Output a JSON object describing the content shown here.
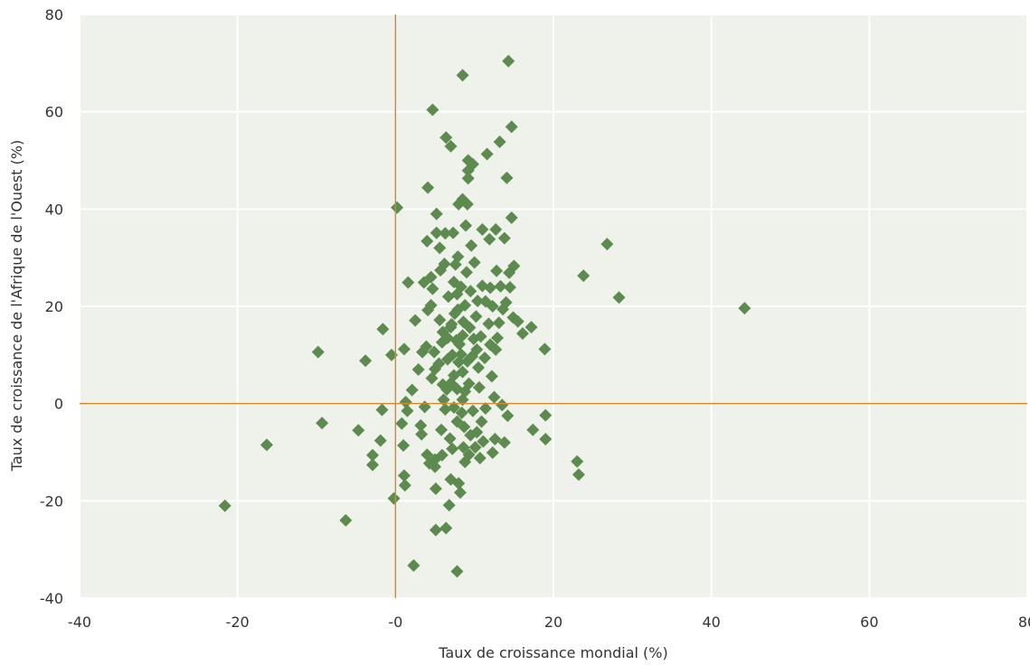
{
  "colors": {
    "plot_background": "#eef2eb",
    "grid": "#ffffff",
    "zero_lines": "#d38a2c",
    "marker": "#5d8a4e",
    "text": "#333333"
  },
  "chart_data": {
    "type": "scatter",
    "title": "",
    "xlabel": "Taux de croissance mondial  (%)",
    "ylabel": "Taux de croissance de l'Afrique de l'Ouest (%)",
    "xlim": [
      -40,
      80
    ],
    "ylim": [
      -40,
      80
    ],
    "x_ticks": [
      -40,
      -20,
      0,
      20,
      40,
      60,
      80
    ],
    "y_ticks": [
      -40,
      -20,
      0,
      20,
      40,
      60,
      80
    ],
    "x_tick_labels": [
      "-40",
      "-20",
      "-0",
      "20",
      "40",
      "60",
      "80"
    ],
    "y_tick_labels": [
      "-40",
      "-20",
      "0",
      "20",
      "40",
      "60",
      "80"
    ],
    "grid": true,
    "marker": "diamond",
    "reference_lines": {
      "x": 0,
      "y": 0
    },
    "legend": "none",
    "points": [
      [
        -21.6,
        -21
      ],
      [
        -16.3,
        -8.5
      ],
      [
        -9.8,
        10.6
      ],
      [
        -9.3,
        -4
      ],
      [
        -6.3,
        -24
      ],
      [
        -4.7,
        -5.5
      ],
      [
        -3.8,
        8.8
      ],
      [
        -2.9,
        -10.6
      ],
      [
        -2.9,
        -12.6
      ],
      [
        -1.9,
        -7.6
      ],
      [
        -1.7,
        -1.3
      ],
      [
        -1.6,
        15.3
      ],
      [
        -0.5,
        10
      ],
      [
        -0.2,
        -19.5
      ],
      [
        0.2,
        40.3
      ],
      [
        0.8,
        -4.1
      ],
      [
        1,
        -8.6
      ],
      [
        1.1,
        -14.8
      ],
      [
        1.2,
        -16.8
      ],
      [
        1.1,
        11.2
      ],
      [
        1.3,
        0.3
      ],
      [
        1.5,
        -1.5
      ],
      [
        1.6,
        24.9
      ],
      [
        2.1,
        2.8
      ],
      [
        2.3,
        -33.3
      ],
      [
        2.5,
        17.1
      ],
      [
        2.9,
        7
      ],
      [
        3.2,
        -4.5
      ],
      [
        3.3,
        -6.3
      ],
      [
        3.4,
        10.6
      ],
      [
        3.6,
        24.9
      ],
      [
        3.7,
        -0.7
      ],
      [
        3.9,
        11.7
      ],
      [
        4,
        33.4
      ],
      [
        4,
        -10.5
      ],
      [
        4.1,
        19.2
      ],
      [
        4.1,
        44.4
      ],
      [
        4.3,
        -12.3
      ],
      [
        4.5,
        20.2
      ],
      [
        4.5,
        26
      ],
      [
        4.6,
        5.2
      ],
      [
        4.7,
        23.6
      ],
      [
        4.7,
        60.4
      ],
      [
        4.9,
        10.6
      ],
      [
        5,
        -11.5
      ],
      [
        5,
        7.1
      ],
      [
        5,
        -13
      ],
      [
        5.1,
        -17.5
      ],
      [
        5.1,
        -26
      ],
      [
        5.2,
        35.1
      ],
      [
        5.2,
        39
      ],
      [
        5.5,
        8.2
      ],
      [
        5.6,
        32
      ],
      [
        5.6,
        17.2
      ],
      [
        5.7,
        27.4
      ],
      [
        5.8,
        -5.4
      ],
      [
        5.9,
        12.6
      ],
      [
        5.9,
        -10.6
      ],
      [
        6,
        14.7
      ],
      [
        6,
        3.9
      ],
      [
        6.1,
        0.8
      ],
      [
        6.2,
        28.7
      ],
      [
        6.3,
        -1.2
      ],
      [
        6.3,
        35
      ],
      [
        6.4,
        54.7
      ],
      [
        6.4,
        -25.6
      ],
      [
        6.5,
        2.9
      ],
      [
        6.6,
        13.5
      ],
      [
        6.6,
        9.1
      ],
      [
        6.7,
        22
      ],
      [
        6.8,
        -20.9
      ],
      [
        6.9,
        -7.2
      ],
      [
        7,
        15.7
      ],
      [
        7,
        52.9
      ],
      [
        7,
        4.2
      ],
      [
        7,
        -15.6
      ],
      [
        7.1,
        16.3
      ],
      [
        7.2,
        10
      ],
      [
        7.2,
        -9.3
      ],
      [
        7.3,
        35.1
      ],
      [
        7.4,
        25
      ],
      [
        7.4,
        -0.8
      ],
      [
        7.4,
        5.8
      ],
      [
        7.5,
        18.5
      ],
      [
        7.6,
        28.6
      ],
      [
        7.7,
        13
      ],
      [
        7.8,
        3
      ],
      [
        7.8,
        -34.5
      ],
      [
        7.8,
        22.5
      ],
      [
        7.8,
        -3.7
      ],
      [
        7.9,
        19.3
      ],
      [
        7.9,
        30.2
      ],
      [
        8,
        8.5
      ],
      [
        8,
        41
      ],
      [
        8,
        -16.4
      ],
      [
        8.1,
        12.2
      ],
      [
        8.2,
        -18.3
      ],
      [
        8.3,
        10.1
      ],
      [
        8.3,
        24
      ],
      [
        8.4,
        -1.9
      ],
      [
        8.5,
        67.5
      ],
      [
        8.5,
        42
      ],
      [
        8.5,
        14
      ],
      [
        8.5,
        0.8
      ],
      [
        8.5,
        6.5
      ],
      [
        8.6,
        -9
      ],
      [
        8.6,
        16.8
      ],
      [
        8.7,
        -4.8
      ],
      [
        8.8,
        2.5
      ],
      [
        8.8,
        20.2
      ],
      [
        8.8,
        -12
      ],
      [
        8.9,
        36.6
      ],
      [
        9,
        27
      ],
      [
        9.1,
        41
      ],
      [
        9.1,
        8.7
      ],
      [
        9.2,
        50
      ],
      [
        9.2,
        46.3
      ],
      [
        9.2,
        47.9
      ],
      [
        9.3,
        4.1
      ],
      [
        9.3,
        -10.5
      ],
      [
        9.4,
        15.6
      ],
      [
        9.5,
        -6.5
      ],
      [
        9.5,
        23.1
      ],
      [
        9.6,
        32.5
      ],
      [
        9.7,
        9.7
      ],
      [
        9.8,
        -1.5
      ],
      [
        9.8,
        49.2
      ],
      [
        9.9,
        13.3
      ],
      [
        10,
        29
      ],
      [
        10.1,
        -9
      ],
      [
        10.2,
        17.9
      ],
      [
        10.3,
        11.1
      ],
      [
        10.3,
        -5.9
      ],
      [
        10.4,
        21.1
      ],
      [
        10.5,
        7.4
      ],
      [
        10.6,
        3.3
      ],
      [
        10.7,
        -11.2
      ],
      [
        10.8,
        13.8
      ],
      [
        10.9,
        -3.7
      ],
      [
        11,
        24.2
      ],
      [
        11,
        35.8
      ],
      [
        11.1,
        -7.8
      ],
      [
        11.3,
        9.4
      ],
      [
        11.4,
        -1
      ],
      [
        11.4,
        21
      ],
      [
        11.6,
        51.3
      ],
      [
        11.8,
        16.4
      ],
      [
        11.9,
        33.8
      ],
      [
        12,
        12.1
      ],
      [
        12,
        23.8
      ],
      [
        12.2,
        5.6
      ],
      [
        12.3,
        20
      ],
      [
        12.3,
        -10.1
      ],
      [
        12.5,
        1.3
      ],
      [
        12.6,
        -7.3
      ],
      [
        12.7,
        35.8
      ],
      [
        12.7,
        11.1
      ],
      [
        12.8,
        27.3
      ],
      [
        12.9,
        13.5
      ],
      [
        13.1,
        16.6
      ],
      [
        13.2,
        53.8
      ],
      [
        13.3,
        24.1
      ],
      [
        13.5,
        -0.3
      ],
      [
        13.6,
        19.4
      ],
      [
        13.8,
        -8
      ],
      [
        13.8,
        34
      ],
      [
        14,
        20.8
      ],
      [
        14.1,
        46.4
      ],
      [
        14.2,
        -2.5
      ],
      [
        14.3,
        70.4
      ],
      [
        14.4,
        26.9
      ],
      [
        14.5,
        23.9
      ],
      [
        14.7,
        56.9
      ],
      [
        14.7,
        38.2
      ],
      [
        14.9,
        17.7
      ],
      [
        15,
        28.3
      ],
      [
        15.5,
        16.9
      ],
      [
        16.1,
        14.4
      ],
      [
        17.2,
        15.7
      ],
      [
        17.4,
        -5.4
      ],
      [
        18.9,
        11.2
      ],
      [
        19,
        -2.4
      ],
      [
        19,
        -7.3
      ],
      [
        23,
        -11.9
      ],
      [
        23.2,
        -14.6
      ],
      [
        23.8,
        26.3
      ],
      [
        26.8,
        32.8
      ],
      [
        28.3,
        21.8
      ],
      [
        44.2,
        19.6
      ]
    ]
  }
}
